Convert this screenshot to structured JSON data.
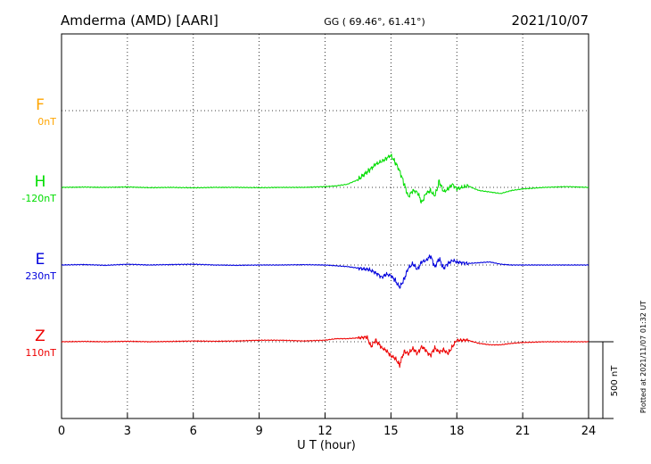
{
  "header": {
    "station": "Amderma (AMD)  [AARI]",
    "coords": "GG ( 69.46°,  61.41°)",
    "date": "2021/10/07"
  },
  "footer": {
    "plotted": "Plotted at 2021/11/07 01:32 UT"
  },
  "chart_data": {
    "type": "line",
    "title": "Amderma (AMD)  [AARI]",
    "xlabel": "U T (hour)",
    "ylabel": "",
    "xlim": [
      0,
      24
    ],
    "xticks": [
      "0",
      "3",
      "6",
      "9",
      "12",
      "15",
      "18",
      "21",
      "24"
    ],
    "grid": true,
    "scale_bar": "500 nT",
    "colors": {
      "F": "#ffa500",
      "H": "#00dd00",
      "E": "#0000dd",
      "Z": "#ee0000"
    },
    "series": [
      {
        "name": "F",
        "offset": "0nT",
        "color": "#ffa500",
        "x": [],
        "y": []
      },
      {
        "name": "H",
        "offset": "-120nT",
        "color": "#00dd00",
        "x": [
          0,
          1,
          2,
          3,
          4,
          5,
          6,
          7,
          8,
          9,
          10,
          11,
          12,
          12.5,
          13,
          13.5,
          14,
          14.3,
          14.6,
          14.8,
          15,
          15.2,
          15.4,
          15.6,
          15.8,
          16,
          16.2,
          16.4,
          16.6,
          16.8,
          17,
          17.2,
          17.4,
          17.6,
          17.8,
          18,
          18.5,
          19,
          19.5,
          20,
          20.5,
          21,
          22,
          23,
          24
        ],
        "y": [
          0,
          2,
          0,
          3,
          -2,
          0,
          -3,
          0,
          0,
          -2,
          0,
          0,
          5,
          10,
          20,
          50,
          110,
          150,
          170,
          190,
          210,
          160,
          110,
          20,
          -60,
          -20,
          -30,
          -100,
          -40,
          -20,
          -60,
          40,
          -30,
          -10,
          20,
          -10,
          10,
          -20,
          -30,
          -40,
          -20,
          -10,
          0,
          5,
          0
        ]
      },
      {
        "name": "E",
        "offset": "230nT",
        "color": "#0000dd",
        "x": [
          0,
          1,
          2,
          3,
          4,
          5,
          6,
          7,
          8,
          9,
          10,
          11,
          12,
          12.5,
          13,
          13.5,
          14,
          14.3,
          14.6,
          14.8,
          15,
          15.2,
          15.4,
          15.6,
          15.8,
          16,
          16.2,
          16.4,
          16.6,
          16.8,
          17,
          17.2,
          17.4,
          17.6,
          17.8,
          18,
          18.5,
          19,
          19.5,
          20,
          20.5,
          21,
          22,
          23,
          24
        ],
        "y": [
          0,
          3,
          -2,
          5,
          0,
          3,
          5,
          0,
          -2,
          0,
          0,
          2,
          0,
          -5,
          -10,
          -20,
          -30,
          -50,
          -80,
          -60,
          -70,
          -100,
          -150,
          -90,
          -20,
          10,
          -30,
          20,
          30,
          60,
          -10,
          40,
          -20,
          10,
          30,
          20,
          10,
          15,
          20,
          5,
          0,
          0,
          0,
          0,
          0
        ]
      },
      {
        "name": "Z",
        "offset": "110nT",
        "color": "#ee0000",
        "x": [
          0,
          1,
          2,
          3,
          4,
          5,
          6,
          7,
          8,
          9,
          10,
          11,
          12,
          12.5,
          13,
          13.5,
          13.9,
          14.1,
          14.3,
          14.6,
          14.8,
          15,
          15.2,
          15.4,
          15.6,
          15.8,
          16,
          16.2,
          16.4,
          16.6,
          16.8,
          17,
          17.2,
          17.4,
          17.6,
          17.8,
          18,
          18.5,
          19,
          19.5,
          20,
          20.5,
          21,
          22,
          23,
          24
        ],
        "y": [
          0,
          2,
          0,
          3,
          0,
          2,
          5,
          3,
          5,
          10,
          10,
          5,
          10,
          20,
          20,
          25,
          30,
          -30,
          10,
          -40,
          -60,
          -90,
          -110,
          -150,
          -60,
          -80,
          -40,
          -80,
          -30,
          -60,
          -90,
          -40,
          -70,
          -50,
          -80,
          -30,
          10,
          10,
          -10,
          -20,
          -20,
          -10,
          -5,
          0,
          0,
          0
        ]
      }
    ]
  }
}
